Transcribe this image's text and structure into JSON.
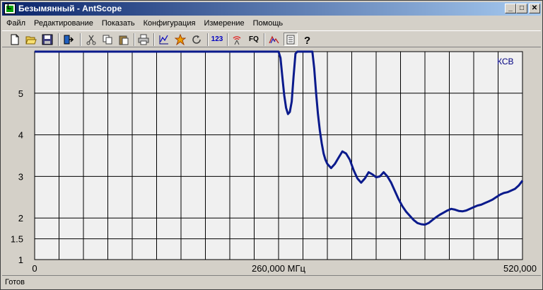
{
  "window": {
    "title": "Безымянный - AntScope",
    "buttons": {
      "minimize": "_",
      "maximize": "□",
      "close": "✕"
    }
  },
  "menu": [
    "Файл",
    "Редактирование",
    "Показать",
    "Конфигурация",
    "Измерение",
    "Помощь"
  ],
  "toolbar": {
    "buttons": [
      {
        "name": "new-icon"
      },
      {
        "name": "open-icon"
      },
      {
        "name": "save-icon"
      },
      {
        "name": "export-icon"
      },
      {
        "name": "cut-icon"
      },
      {
        "name": "copy-icon"
      },
      {
        "name": "paste-icon"
      },
      {
        "name": "print-icon"
      },
      {
        "name": "graph-icon"
      },
      {
        "name": "star-icon"
      },
      {
        "name": "refresh-icon"
      },
      {
        "name": "numbers-button",
        "label": "123"
      },
      {
        "name": "antenna-icon"
      },
      {
        "name": "fq-button",
        "label": "FQ"
      },
      {
        "name": "mountain-icon"
      },
      {
        "name": "notebook-icon"
      },
      {
        "name": "help-icon"
      }
    ]
  },
  "chart_data": {
    "type": "line",
    "series_label": "КСВ",
    "color": "#0a1a8c",
    "x_ticks": [
      "0",
      "260,000 МГц",
      "520,000"
    ],
    "xlim": [
      0,
      520
    ],
    "y_ticks": [
      "1",
      "1.5",
      "2",
      "3",
      "4",
      "5"
    ],
    "ylim": [
      1,
      6
    ],
    "grid": true,
    "x": [
      0,
      260,
      262,
      264,
      266,
      268,
      270,
      272,
      274,
      276,
      278,
      280,
      282,
      284,
      288,
      292,
      296,
      298,
      300,
      302,
      304,
      306,
      308,
      310,
      312,
      316,
      320,
      324,
      328,
      332,
      336,
      340,
      344,
      348,
      352,
      356,
      360,
      364,
      368,
      372,
      376,
      380,
      384,
      388,
      392,
      396,
      400,
      404,
      408,
      412,
      416,
      420,
      424,
      428,
      432,
      436,
      440,
      444,
      448,
      452,
      456,
      460,
      464,
      468,
      472,
      476,
      480,
      484,
      488,
      492,
      496,
      500,
      504,
      508,
      512,
      516,
      520
    ],
    "y": [
      6.0,
      6.0,
      5.85,
      5.4,
      4.95,
      4.65,
      4.5,
      4.55,
      4.8,
      5.4,
      5.95,
      6.0,
      6.0,
      6.0,
      6.0,
      6.0,
      6.0,
      5.6,
      5.0,
      4.5,
      4.1,
      3.8,
      3.55,
      3.4,
      3.3,
      3.2,
      3.3,
      3.45,
      3.6,
      3.55,
      3.4,
      3.15,
      2.95,
      2.85,
      2.95,
      3.1,
      3.05,
      2.98,
      3.0,
      3.1,
      3.0,
      2.85,
      2.65,
      2.45,
      2.28,
      2.15,
      2.05,
      1.95,
      1.88,
      1.85,
      1.84,
      1.88,
      1.95,
      2.02,
      2.08,
      2.13,
      2.18,
      2.22,
      2.2,
      2.17,
      2.16,
      2.18,
      2.22,
      2.26,
      2.3,
      2.32,
      2.36,
      2.4,
      2.44,
      2.5,
      2.56,
      2.6,
      2.62,
      2.66,
      2.7,
      2.78,
      2.9
    ]
  },
  "status": {
    "text": "Готов"
  }
}
